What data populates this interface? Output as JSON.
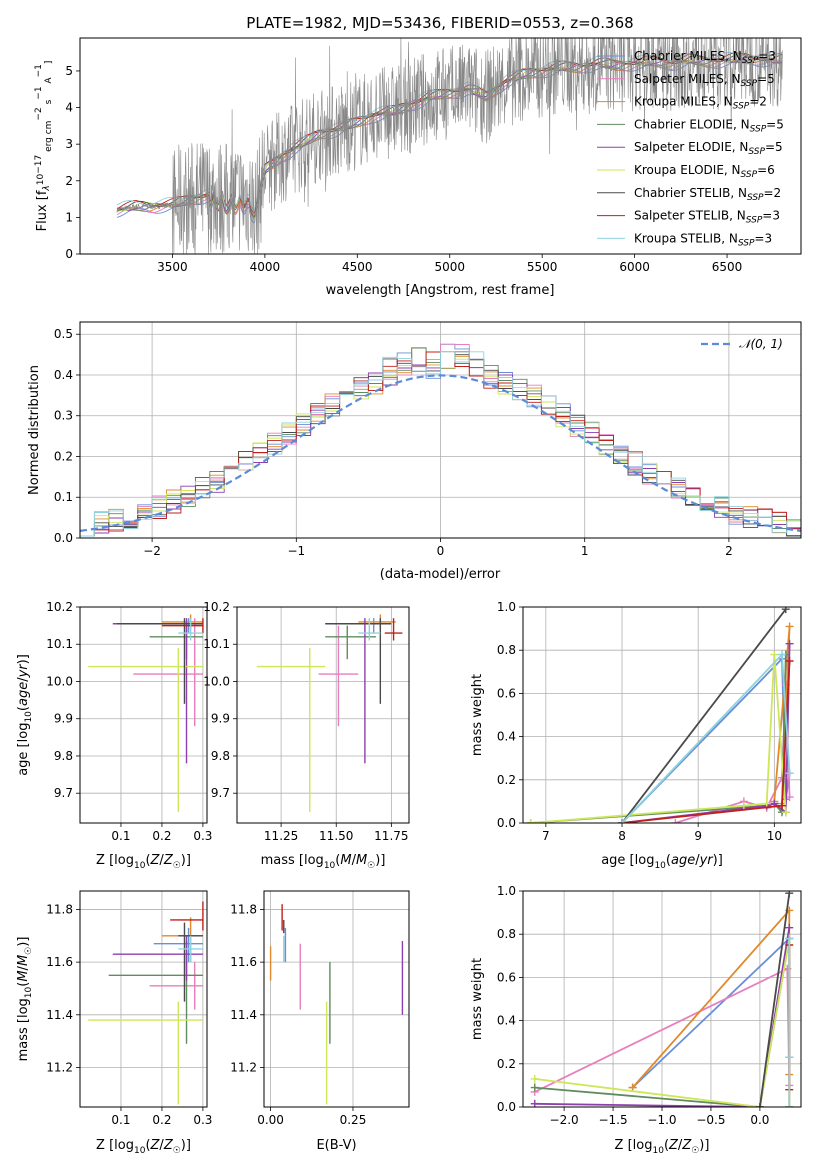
{
  "title": "PLATE=1982, MJD=53436, FIBERID=0553, z=0.368",
  "colors": {
    "Chabrier MILES": "#6a8fd8",
    "Salpeter MILES": "#e77fbf",
    "Kroupa MILES": "#e08a2c",
    "Chabrier ELODIE": "#5f8c5f",
    "Salpeter ELODIE": "#8e3fae",
    "Kroupa ELODIE": "#cde65a",
    "Chabrier STELIB": "#4a4a4a",
    "Salpeter STELIB": "#c0201c",
    "Kroupa STELIB": "#8fd3df",
    "data": "#888888",
    "normal": "#5b8bd9"
  },
  "chart_data": [
    {
      "type": "line",
      "panel": "spectrum",
      "xlabel": "wavelength [Angstrom, rest frame]",
      "ylabel_parts": [
        "Flux [f",
        "λ",
        "10",
        "−17",
        " erg cm",
        "−2",
        " s",
        "−1",
        " A",
        "−1",
        "]"
      ],
      "xlim": [
        3000,
        6900
      ],
      "ylim": [
        0,
        5.9
      ],
      "xticks": [
        "3500",
        "4000",
        "4500",
        "5000",
        "5500",
        "6000",
        "6500"
      ],
      "yticks": [
        "0",
        "1",
        "2",
        "3",
        "4",
        "5"
      ],
      "legend_placement": "top-right",
      "legend": [
        {
          "name": "Chabrier MILES",
          "nssp": "3"
        },
        {
          "name": "Salpeter MILES",
          "nssp": "5"
        },
        {
          "name": "Kroupa MILES",
          "nssp": "2"
        },
        {
          "name": "Chabrier ELODIE",
          "nssp": "5"
        },
        {
          "name": "Salpeter ELODIE",
          "nssp": "5"
        },
        {
          "name": "Kroupa ELODIE",
          "nssp": "6"
        },
        {
          "name": "Chabrier STELIB",
          "nssp": "2"
        },
        {
          "name": "Salpeter STELIB",
          "nssp": "3"
        },
        {
          "name": "Kroupa STELIB",
          "nssp": "3"
        }
      ],
      "continuum": {
        "x": [
          3200,
          3300,
          3400,
          3500,
          3600,
          3700,
          3800,
          3900,
          3950,
          4000,
          4100,
          4200,
          4300,
          4400,
          4500,
          4600,
          4700,
          4800,
          4900,
          5000,
          5100,
          5200,
          5300,
          5400,
          5500,
          5600,
          5700,
          5800,
          5900,
          6000,
          6100,
          6200,
          6300,
          6400,
          6500,
          6600,
          6700,
          6800
        ],
        "y": [
          1.2,
          1.3,
          1.3,
          1.35,
          1.5,
          1.6,
          1.5,
          1.6,
          1.2,
          2.3,
          2.7,
          3.0,
          3.3,
          3.4,
          3.6,
          3.8,
          3.9,
          4.1,
          4.3,
          4.4,
          4.5,
          4.3,
          4.7,
          4.9,
          5.0,
          5.1,
          5.1,
          5.2,
          5.15,
          5.2,
          5.25,
          5.2,
          5.3,
          5.25,
          5.3,
          5.35,
          5.3,
          5.3
        ]
      },
      "noise_start": 3500
    },
    {
      "type": "histogram",
      "panel": "residuals",
      "xlabel": "(data-model)/error",
      "ylabel": "Normed distribution",
      "xlim": [
        -2.5,
        2.5
      ],
      "ylim": [
        0,
        0.53
      ],
      "xticks": [
        "−2",
        "−1",
        "0",
        "1",
        "2"
      ],
      "yticks": [
        "0.0",
        "0.1",
        "0.2",
        "0.3",
        "0.4",
        "0.5"
      ],
      "legend_label": "𝒩(0, 1)",
      "legend_placement": "top-right",
      "bin_width": 0.1,
      "envelope_note": "nine step histograms, one per model, following N(0,1)"
    },
    {
      "type": "errorbar",
      "panel": "age-vs-Z",
      "xlabel": "Z [log10(Z/Z☉)]",
      "ylabel": "age  [log10(age/yr)]",
      "xlim": [
        0.0,
        0.31
      ],
      "ylim": [
        9.62,
        10.2
      ],
      "xticks": [
        "0.1",
        "0.2",
        "0.3"
      ],
      "yticks": [
        "9.7",
        "9.8",
        "9.9",
        "10.0",
        "10.1",
        "10.2"
      ],
      "points": [
        {
          "model": "Chabrier MILES",
          "x": 0.265,
          "y": 10.155,
          "xlo": 0.21,
          "xhi": 0.3,
          "ylo": 10.13,
          "yhi": 10.17
        },
        {
          "model": "Salpeter MILES",
          "x": 0.28,
          "y": 10.02,
          "xlo": 0.13,
          "xhi": 0.3,
          "ylo": 9.88,
          "yhi": 10.17
        },
        {
          "model": "Kroupa MILES",
          "x": 0.27,
          "y": 10.16,
          "xlo": 0.2,
          "xhi": 0.3,
          "ylo": 10.14,
          "yhi": 10.18
        },
        {
          "model": "Chabrier ELODIE",
          "x": 0.26,
          "y": 10.12,
          "xlo": 0.17,
          "xhi": 0.3,
          "ylo": 10.06,
          "yhi": 10.15
        },
        {
          "model": "Salpeter ELODIE",
          "x": 0.26,
          "y": 10.155,
          "xlo": 0.08,
          "xhi": 0.3,
          "ylo": 9.78,
          "yhi": 10.17
        },
        {
          "model": "Kroupa ELODIE",
          "x": 0.24,
          "y": 10.04,
          "xlo": 0.02,
          "xhi": 0.3,
          "ylo": 9.65,
          "yhi": 10.09
        },
        {
          "model": "Chabrier STELIB",
          "x": 0.255,
          "y": 10.155,
          "xlo": 0.09,
          "xhi": 0.3,
          "ylo": 9.94,
          "yhi": 10.17
        },
        {
          "model": "Salpeter STELIB",
          "x": 0.3,
          "y": 10.15,
          "xlo": 0.2,
          "xhi": 0.3,
          "ylo": 10.13,
          "yhi": 10.17
        },
        {
          "model": "Kroupa STELIB",
          "x": 0.27,
          "y": 10.13,
          "xlo": 0.24,
          "xhi": 0.3,
          "ylo": 10.11,
          "yhi": 10.17
        }
      ]
    },
    {
      "type": "errorbar",
      "panel": "age-vs-mass",
      "xlabel": "mass [log10(M/M☉)]",
      "xlim": [
        11.05,
        11.83
      ],
      "ylim": [
        9.62,
        10.2
      ],
      "xticks": [
        "11.25",
        "11.50",
        "11.75"
      ],
      "yticks": [
        "9.7",
        "9.8",
        "9.9",
        "10.0",
        "10.1",
        "10.2"
      ],
      "points": [
        {
          "model": "Chabrier MILES",
          "x": 11.67,
          "y": 10.155,
          "xlo": 11.6,
          "xhi": 11.73,
          "ylo": 10.13,
          "yhi": 10.17
        },
        {
          "model": "Salpeter MILES",
          "x": 11.51,
          "y": 10.02,
          "xlo": 11.42,
          "xhi": 11.6,
          "ylo": 9.88,
          "yhi": 10.15
        },
        {
          "model": "Kroupa MILES",
          "x": 11.7,
          "y": 10.16,
          "xlo": 11.6,
          "xhi": 11.77,
          "ylo": 10.14,
          "yhi": 10.18
        },
        {
          "model": "Chabrier ELODIE",
          "x": 11.55,
          "y": 10.12,
          "xlo": 11.45,
          "xhi": 11.68,
          "ylo": 10.06,
          "yhi": 10.15
        },
        {
          "model": "Salpeter ELODIE",
          "x": 11.63,
          "y": 10.155,
          "xlo": 11.53,
          "xhi": 11.7,
          "ylo": 9.78,
          "yhi": 10.17
        },
        {
          "model": "Kroupa ELODIE",
          "x": 11.38,
          "y": 10.04,
          "xlo": 11.14,
          "xhi": 11.45,
          "ylo": 9.65,
          "yhi": 10.09
        },
        {
          "model": "Chabrier STELIB",
          "x": 11.7,
          "y": 10.155,
          "xlo": 11.45,
          "xhi": 11.75,
          "ylo": 9.94,
          "yhi": 10.17
        },
        {
          "model": "Salpeter STELIB",
          "x": 11.76,
          "y": 10.13,
          "xlo": 11.72,
          "xhi": 11.8,
          "ylo": 10.11,
          "yhi": 10.17
        },
        {
          "model": "Kroupa STELIB",
          "x": 11.65,
          "y": 10.13,
          "xlo": 11.6,
          "xhi": 11.7,
          "ylo": 10.11,
          "yhi": 10.17
        }
      ]
    },
    {
      "type": "line",
      "panel": "massweight-vs-age",
      "xlabel": "age  [log10(age/yr)]",
      "ylabel": "mass weight",
      "xlim": [
        6.7,
        10.35
      ],
      "ylim": [
        0,
        1.0
      ],
      "xticks": [
        "7",
        "8",
        "9",
        "10"
      ],
      "yticks": [
        "0.0",
        "0.2",
        "0.4",
        "0.6",
        "0.8",
        "1.0"
      ],
      "series": [
        {
          "model": "Chabrier MILES",
          "x": [
            8.0,
            10.1,
            10.15,
            10.2
          ],
          "y": [
            0.0,
            0.76,
            0.11,
            0.23
          ]
        },
        {
          "model": "Salpeter MILES",
          "x": [
            8.7,
            9.6,
            9.9,
            10.1,
            10.15,
            10.2
          ],
          "y": [
            0.0,
            0.1,
            0.07,
            0.21,
            0.64,
            0.12
          ]
        },
        {
          "model": "Kroupa MILES",
          "x": [
            10.1,
            10.2,
            10.0
          ],
          "y": [
            0.09,
            0.91,
            0.1
          ]
        },
        {
          "model": "Chabrier ELODIE",
          "x": [
            6.8,
            9.9,
            10.0,
            10.1,
            10.15
          ],
          "y": [
            0.0,
            0.08,
            0.09,
            0.05,
            0.78
          ]
        },
        {
          "model": "Salpeter ELODIE",
          "x": [
            8.0,
            9.9,
            10.0,
            10.15,
            10.2
          ],
          "y": [
            0.0,
            0.08,
            0.09,
            0.05,
            0.83
          ]
        },
        {
          "model": "Kroupa ELODIE",
          "x": [
            6.8,
            9.6,
            9.9,
            10.0,
            10.15
          ],
          "y": [
            0.0,
            0.08,
            0.09,
            0.78,
            0.05
          ]
        },
        {
          "model": "Chabrier STELIB",
          "x": [
            8.0,
            10.15
          ],
          "y": [
            0.0,
            0.99
          ]
        },
        {
          "model": "Salpeter STELIB",
          "x": [
            8.0,
            10.1,
            10.2
          ],
          "y": [
            0.0,
            0.08,
            0.75
          ]
        },
        {
          "model": "Kroupa STELIB",
          "x": [
            8.0,
            10.1,
            10.2
          ],
          "y": [
            0.0,
            0.78,
            0.23
          ]
        }
      ]
    },
    {
      "type": "errorbar",
      "panel": "mass-vs-Z",
      "xlabel": "Z [log10(Z/Z☉)]",
      "ylabel": "mass [log10(M/M☉)]",
      "xlim": [
        0.0,
        0.31
      ],
      "ylim": [
        11.05,
        11.87
      ],
      "xticks": [
        "0.1",
        "0.2",
        "0.3"
      ],
      "yticks": [
        "11.2",
        "11.4",
        "11.6",
        "11.8"
      ],
      "points": [
        {
          "model": "Chabrier MILES",
          "x": 0.265,
          "y": 11.67,
          "xlo": 0.18,
          "xhi": 0.3,
          "ylo": 11.6,
          "yhi": 11.73
        },
        {
          "model": "Salpeter MILES",
          "x": 0.28,
          "y": 11.51,
          "xlo": 0.17,
          "xhi": 0.3,
          "ylo": 11.42,
          "yhi": 11.6
        },
        {
          "model": "Kroupa MILES",
          "x": 0.27,
          "y": 11.7,
          "xlo": 0.2,
          "xhi": 0.3,
          "ylo": 11.6,
          "yhi": 11.77
        },
        {
          "model": "Chabrier ELODIE",
          "x": 0.26,
          "y": 11.55,
          "xlo": 0.07,
          "xhi": 0.3,
          "ylo": 11.29,
          "yhi": 11.68
        },
        {
          "model": "Salpeter ELODIE",
          "x": 0.26,
          "y": 11.63,
          "xlo": 0.08,
          "xhi": 0.3,
          "ylo": 11.53,
          "yhi": 11.7
        },
        {
          "model": "Kroupa ELODIE",
          "x": 0.24,
          "y": 11.38,
          "xlo": 0.02,
          "xhi": 0.3,
          "ylo": 11.06,
          "yhi": 11.45
        },
        {
          "model": "Chabrier STELIB",
          "x": 0.255,
          "y": 11.7,
          "xlo": 0.24,
          "xhi": 0.3,
          "ylo": 11.45,
          "yhi": 11.75
        },
        {
          "model": "Salpeter STELIB",
          "x": 0.3,
          "y": 11.76,
          "xlo": 0.22,
          "xhi": 0.3,
          "ylo": 11.72,
          "yhi": 11.83
        },
        {
          "model": "Kroupa STELIB",
          "x": 0.27,
          "y": 11.65,
          "xlo": 0.24,
          "xhi": 0.3,
          "ylo": 11.6,
          "yhi": 11.7
        }
      ]
    },
    {
      "type": "errorbar",
      "panel": "mass-vs-EBV",
      "xlabel": "E(B-V)",
      "xlim": [
        -0.02,
        0.42
      ],
      "ylim": [
        11.05,
        11.87
      ],
      "xticks": [
        "0.00",
        "0.25"
      ],
      "yticks": [
        "11.2",
        "11.4",
        "11.6",
        "11.8"
      ],
      "points": [
        {
          "model": "Chabrier MILES",
          "x": 0.045,
          "y": 11.67,
          "ylo": 11.6,
          "yhi": 11.73
        },
        {
          "model": "Salpeter MILES",
          "x": 0.09,
          "y": 11.51,
          "ylo": 11.42,
          "yhi": 11.67
        },
        {
          "model": "Kroupa MILES",
          "x": 0.0,
          "y": 11.58,
          "ylo": 11.53,
          "yhi": 11.66
        },
        {
          "model": "Chabrier ELODIE",
          "x": 0.18,
          "y": 11.55,
          "ylo": 11.29,
          "yhi": 11.6
        },
        {
          "model": "Salpeter ELODIE",
          "x": 0.4,
          "y": 11.55,
          "ylo": 11.4,
          "yhi": 11.68
        },
        {
          "model": "Kroupa ELODIE",
          "x": 0.17,
          "y": 11.38,
          "ylo": 11.06,
          "yhi": 11.45
        },
        {
          "model": "Chabrier STELIB",
          "x": 0.04,
          "y": 11.73,
          "ylo": 11.71,
          "yhi": 11.76
        },
        {
          "model": "Salpeter STELIB",
          "x": 0.035,
          "y": 11.76,
          "ylo": 11.72,
          "yhi": 11.82
        },
        {
          "model": "Kroupa STELIB",
          "x": 0.04,
          "y": 11.65,
          "ylo": 11.6,
          "yhi": 11.7
        }
      ]
    },
    {
      "type": "line",
      "panel": "massweight-vs-Z",
      "xlabel": "Z [log10(Z/Z☉)]",
      "ylabel": "mass weight",
      "xlim": [
        -2.42,
        0.42
      ],
      "ylim": [
        0,
        1.0
      ],
      "xticks": [
        "−2.0",
        "−1.5",
        "−1.0",
        "−0.5",
        "0.0"
      ],
      "yticks": [
        "0.0",
        "0.2",
        "0.4",
        "0.6",
        "0.8",
        "1.0"
      ],
      "series": [
        {
          "model": "Chabrier MILES",
          "x": [
            -1.3,
            0.3,
            0.3
          ],
          "y": [
            0.09,
            0.78,
            0.23
          ]
        },
        {
          "model": "Salpeter MILES",
          "x": [
            -2.3,
            0.28,
            0.3,
            0.3
          ],
          "y": [
            0.07,
            0.64,
            0.1,
            0.0
          ]
        },
        {
          "model": "Kroupa MILES",
          "x": [
            -1.3,
            0.3,
            0.3,
            0.3
          ],
          "y": [
            0.09,
            0.91,
            0.15,
            0.0
          ]
        },
        {
          "model": "Chabrier ELODIE",
          "x": [
            -2.3,
            0.0,
            0.3
          ],
          "y": [
            0.09,
            0.0,
            0.78
          ]
        },
        {
          "model": "Salpeter ELODIE",
          "x": [
            -2.3,
            0.0,
            0.3
          ],
          "y": [
            0.015,
            0.0,
            0.83
          ]
        },
        {
          "model": "Kroupa ELODIE",
          "x": [
            -2.3,
            0.0,
            0.3,
            0.3
          ],
          "y": [
            0.13,
            0.0,
            0.78,
            0.0
          ]
        },
        {
          "model": "Chabrier STELIB",
          "x": [
            0.0,
            0.3
          ],
          "y": [
            0.0,
            0.99
          ]
        },
        {
          "model": "Salpeter STELIB",
          "x": [
            0.3,
            0.3
          ],
          "y": [
            0.08,
            0.75
          ]
        },
        {
          "model": "Kroupa STELIB",
          "x": [
            0.3,
            0.3,
            0.3
          ],
          "y": [
            0.0,
            0.78,
            0.23
          ]
        }
      ]
    }
  ]
}
